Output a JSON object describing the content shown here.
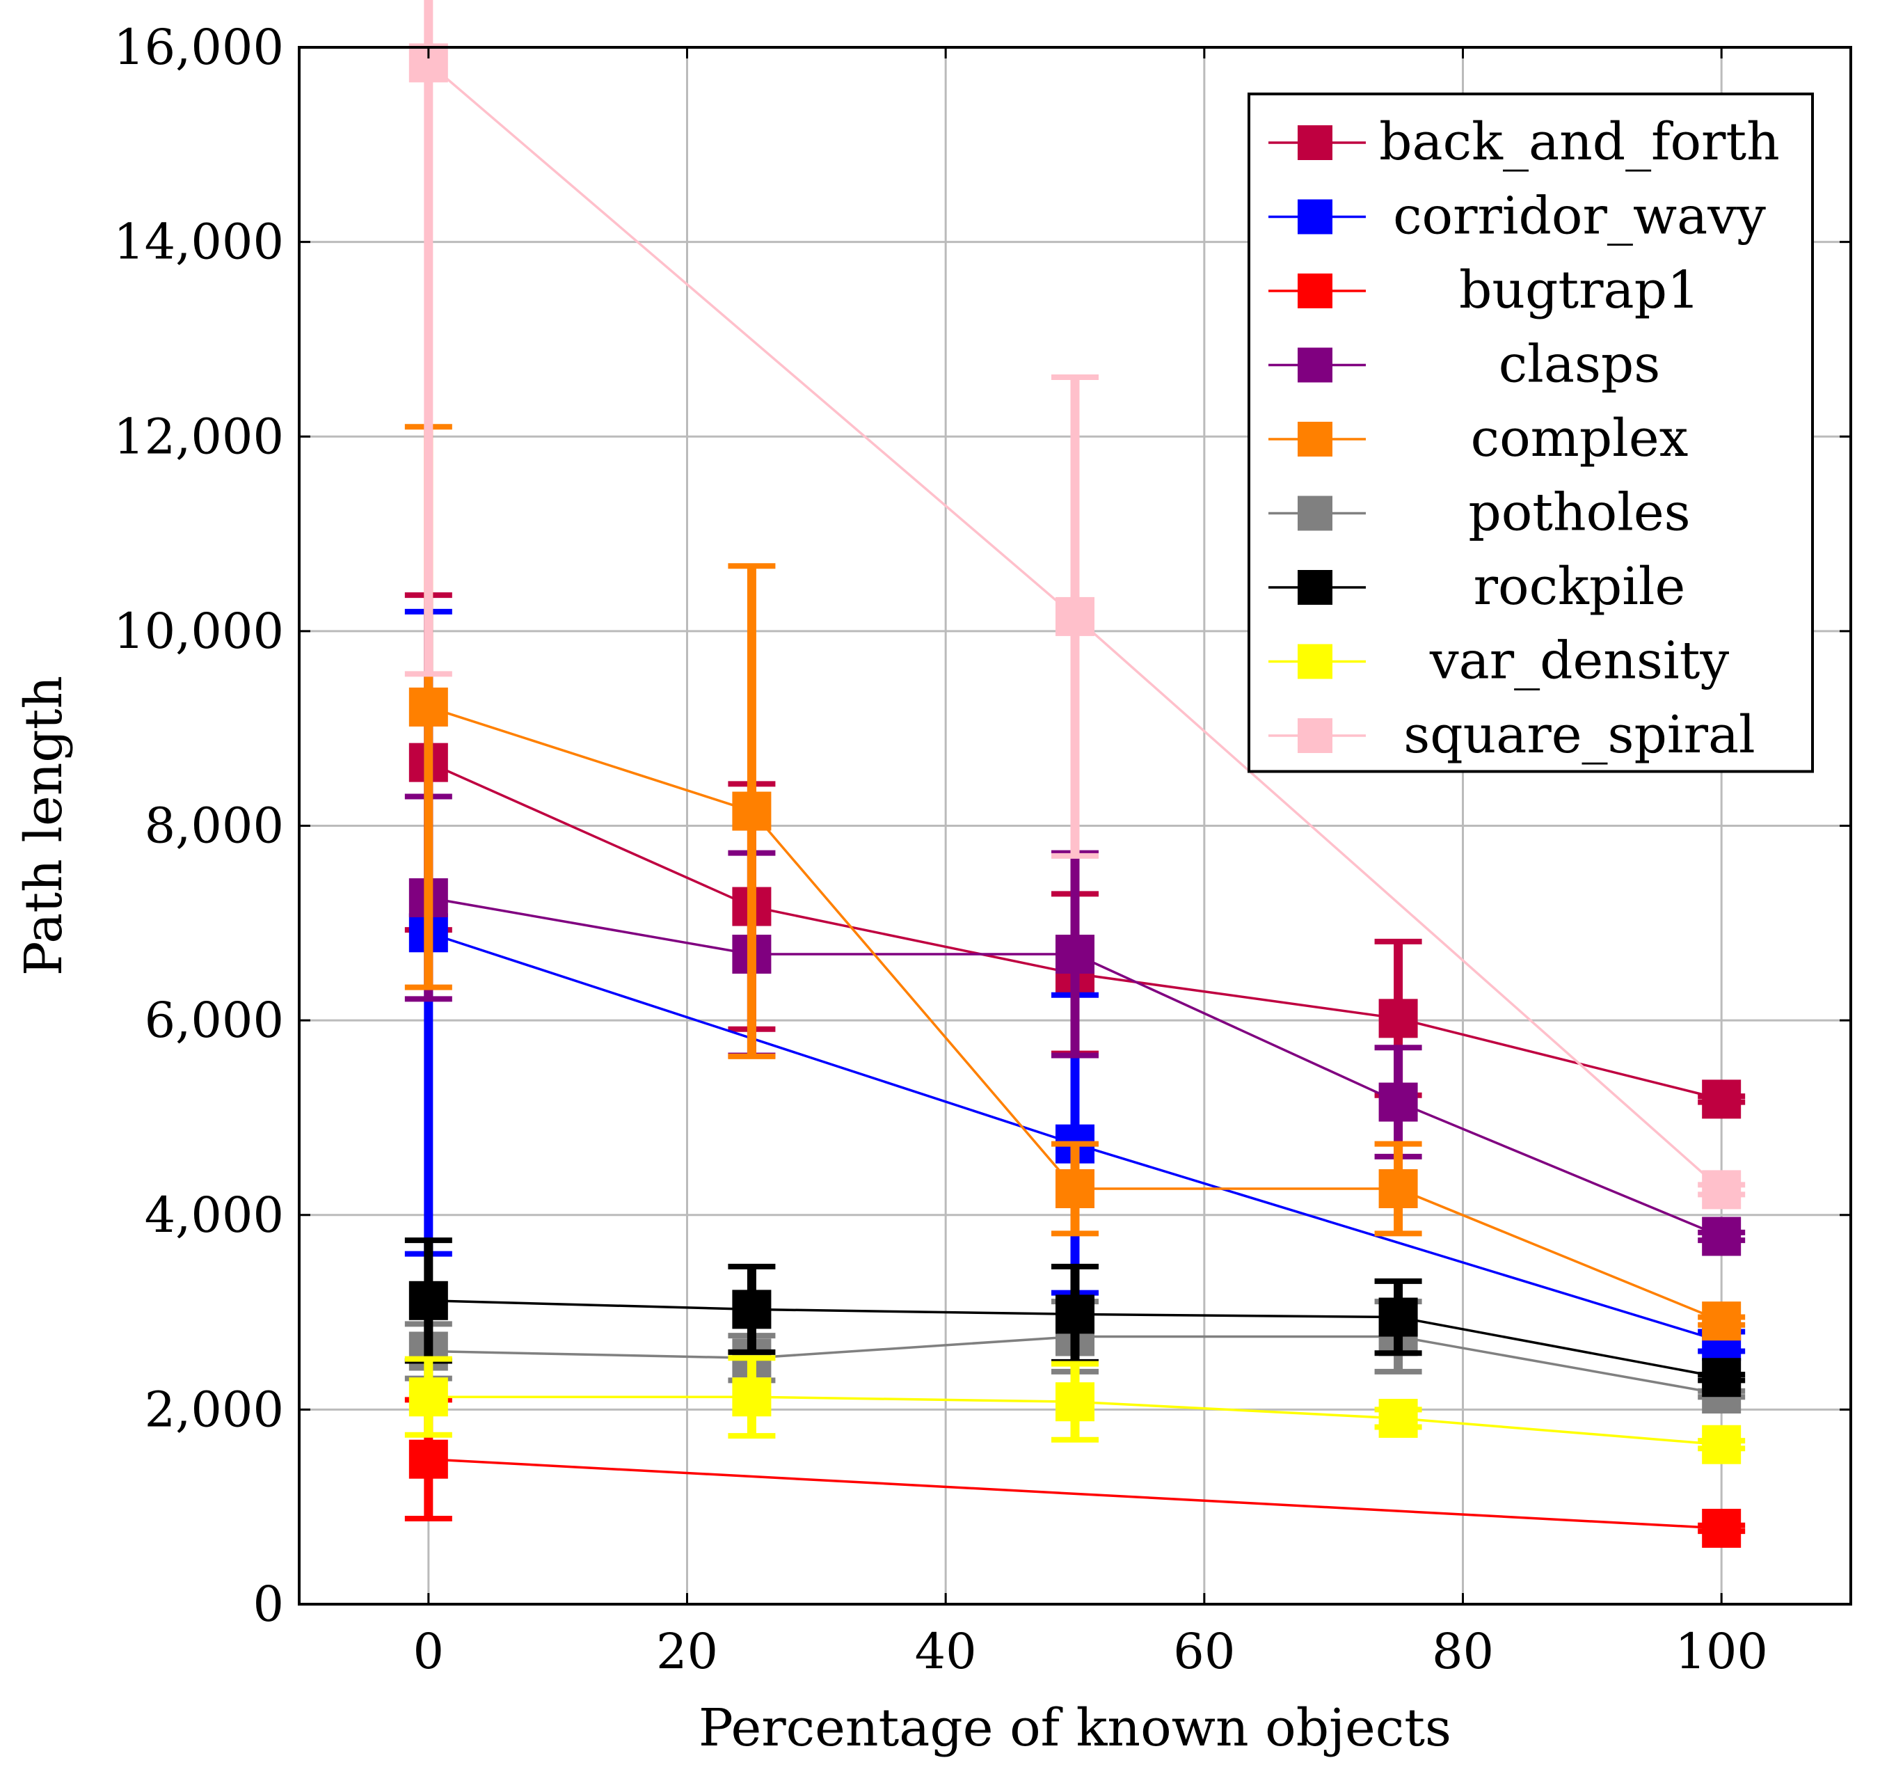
{
  "chart_data": {
    "type": "line",
    "title": "",
    "xlabel": "Percentage of known objects",
    "ylabel": "Path length",
    "xlim": [
      -10,
      110
    ],
    "ylim": [
      0,
      16000
    ],
    "x": [
      0,
      25,
      50,
      75,
      100
    ],
    "xticks": [
      0,
      20,
      40,
      60,
      80,
      100
    ],
    "xtick_labels": [
      "0",
      "20",
      "40",
      "60",
      "80",
      "100"
    ],
    "yticks": [
      0,
      2000,
      4000,
      6000,
      8000,
      10000,
      12000,
      14000,
      16000
    ],
    "ytick_labels": [
      "0",
      "2,000",
      "4,000",
      "6,000",
      "8,000",
      "10,000",
      "12,000",
      "14,000",
      "16,000"
    ],
    "grid": true,
    "legend_position": "top-right",
    "marker": "square",
    "series": [
      {
        "name": "back_and_forth",
        "color": "#bf0040",
        "x": [
          0,
          25,
          50,
          75,
          100
        ],
        "values": [
          8650,
          7170,
          6480,
          6020,
          5190
        ],
        "err": [
          1720,
          1260,
          820,
          790,
          30
        ]
      },
      {
        "name": "corridor_wavy",
        "color": "#0000ff",
        "x": [
          0,
          50,
          100
        ],
        "values": [
          6900,
          4730,
          2700
        ],
        "err": [
          3300,
          1530,
          100
        ]
      },
      {
        "name": "bugtrap1",
        "color": "#ff0000",
        "x": [
          0,
          100
        ],
        "values": [
          1490,
          780
        ],
        "err": [
          610,
          30
        ]
      },
      {
        "name": "clasps",
        "color": "#800080",
        "x": [
          0,
          25,
          50,
          75,
          100
        ],
        "values": [
          7260,
          6680,
          6680,
          5160,
          3780
        ],
        "err": [
          1040,
          1040,
          1040,
          560,
          40
        ]
      },
      {
        "name": "complex",
        "color": "#ff8000",
        "x": [
          0,
          25,
          50,
          75,
          100
        ],
        "values": [
          9220,
          8150,
          4270,
          4270,
          2910
        ],
        "err": [
          2880,
          2520,
          460,
          460,
          40
        ]
      },
      {
        "name": "potholes",
        "color": "#808080",
        "x": [
          0,
          25,
          50,
          75,
          100
        ],
        "values": [
          2600,
          2530,
          2750,
          2750,
          2160
        ],
        "err": [
          280,
          230,
          360,
          360,
          30
        ]
      },
      {
        "name": "rockpile",
        "color": "#000000",
        "x": [
          0,
          25,
          50,
          75,
          100
        ],
        "values": [
          3120,
          3030,
          2980,
          2950,
          2330
        ],
        "err": [
          620,
          440,
          490,
          370,
          30
        ]
      },
      {
        "name": "var_density",
        "color": "#ffff00",
        "x": [
          0,
          25,
          50,
          75,
          100
        ],
        "values": [
          2130,
          2130,
          2080,
          1910,
          1640
        ],
        "err": [
          390,
          400,
          390,
          90,
          40
        ]
      },
      {
        "name": "square_spiral",
        "color": "#ffc0cb",
        "x": [
          0,
          50,
          100
        ],
        "values": [
          15840,
          10150,
          4260
        ],
        "err": [
          6280,
          2460,
          50
        ]
      }
    ]
  }
}
